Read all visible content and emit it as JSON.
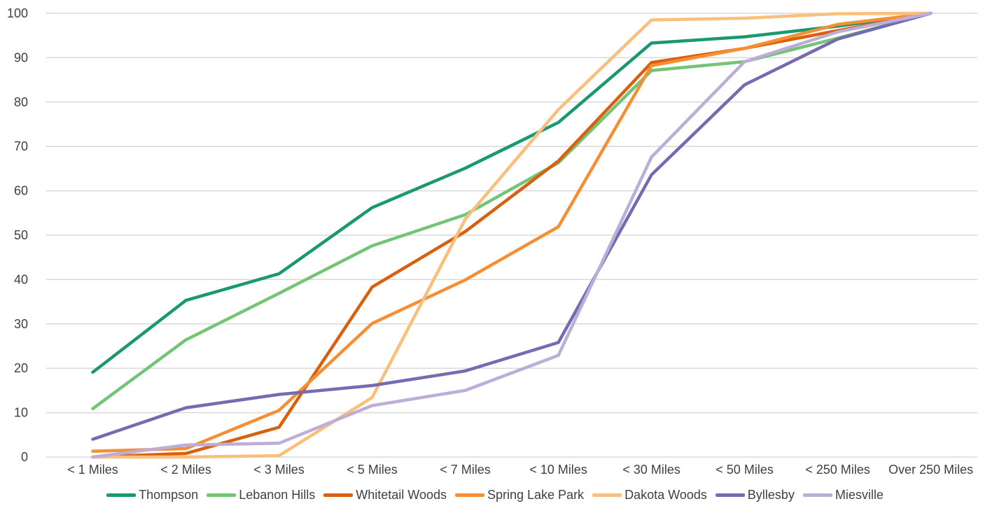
{
  "chart_data": {
    "type": "line",
    "categories": [
      "< 1 Miles",
      "< 2 Miles",
      "< 3 Miles",
      "< 5 Miles",
      "< 7 Miles",
      "< 10 Miles",
      "< 30 Miles",
      "< 50 Miles",
      "< 250 Miles",
      "Over 250 Miles"
    ],
    "ylim": [
      0,
      100
    ],
    "yticks": [
      "0",
      "10",
      "20",
      "30",
      "40",
      "50",
      "60",
      "70",
      "80",
      "90",
      "100"
    ],
    "grid": true,
    "legend_position": "bottom",
    "series": [
      {
        "name": "Thompson",
        "color": "#1a9870",
        "values": [
          19.1,
          35.3,
          41.3,
          56.2,
          65.1,
          75.4,
          93.3,
          94.7,
          97.1,
          100
        ]
      },
      {
        "name": "Lebanon Hills",
        "color": "#74c476",
        "values": [
          10.9,
          26.4,
          36.9,
          47.6,
          54.6,
          66.3,
          87.1,
          89.1,
          94.4,
          100
        ]
      },
      {
        "name": "Whitetail Woods",
        "color": "#d9600f",
        "values": [
          0.0,
          0.8,
          6.7,
          38.3,
          50.8,
          66.7,
          88.9,
          92.1,
          96.1,
          100
        ]
      },
      {
        "name": "Spring Lake Park",
        "color": "#f68f33",
        "values": [
          1.3,
          1.9,
          10.5,
          30.1,
          39.9,
          51.9,
          88.2,
          92.1,
          97.5,
          100
        ]
      },
      {
        "name": "Dakota Woods",
        "color": "#fbbf7c",
        "values": [
          0.0,
          0.0,
          0.3,
          13.4,
          53.6,
          78.3,
          98.5,
          98.9,
          99.9,
          100
        ]
      },
      {
        "name": "Byllesby",
        "color": "#756bb1",
        "values": [
          4.0,
          11.1,
          14.1,
          16.1,
          19.4,
          25.8,
          63.6,
          83.9,
          94.2,
          100
        ]
      },
      {
        "name": "Miesville",
        "color": "#bcaed8",
        "values": [
          0.0,
          2.7,
          3.1,
          11.6,
          15.0,
          22.9,
          67.6,
          89.1,
          95.8,
          100
        ]
      }
    ]
  }
}
